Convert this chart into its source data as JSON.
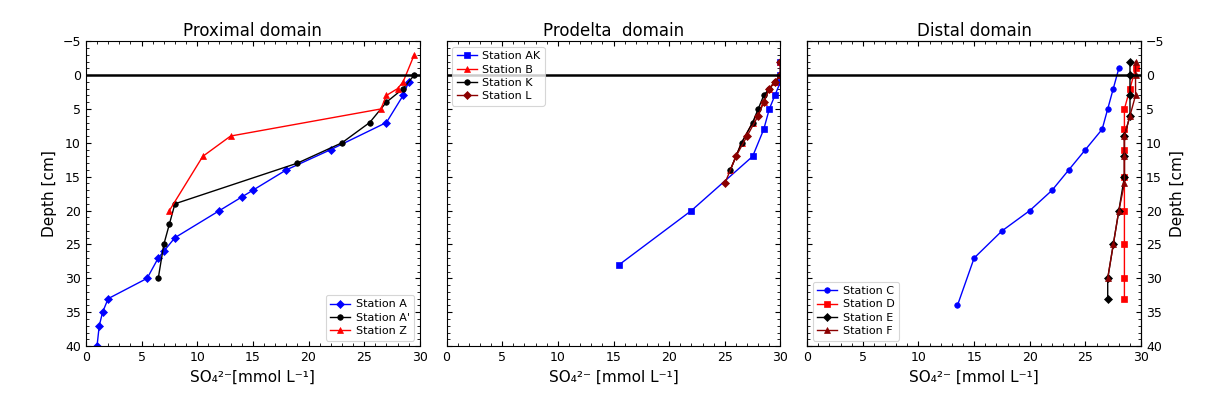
{
  "proximal": {
    "title": "Proximal domain",
    "xlabel": "SO₄²⁻[mmol L⁻¹]",
    "ylabel": "Depth [cm]",
    "ylim": [
      40,
      -5
    ],
    "xlim": [
      0,
      30
    ],
    "xticks": [
      0,
      5,
      10,
      15,
      20,
      25,
      30
    ],
    "yticks": [
      -5,
      0,
      5,
      10,
      15,
      20,
      25,
      30,
      35,
      40
    ],
    "hline_y": 0,
    "stations": [
      {
        "label": "Station A",
        "color": "blue",
        "marker": "D",
        "markersize": 4,
        "so4": [
          1.0,
          1.2,
          1.5,
          2.0,
          5.5,
          6.5,
          7.0,
          8.0,
          12.0,
          14.0,
          15.0,
          18.0,
          22.0,
          27.0,
          28.5,
          29.0
        ],
        "depth": [
          40,
          37,
          35,
          33,
          30,
          27,
          26,
          24,
          20,
          18,
          17,
          14,
          11,
          7,
          3,
          1
        ]
      },
      {
        "label": "Station A'",
        "color": "black",
        "marker": "o",
        "markersize": 4,
        "so4": [
          6.5,
          7.0,
          7.5,
          8.0,
          19.0,
          23.0,
          25.5,
          27.0,
          28.5,
          29.5
        ],
        "depth": [
          30,
          25,
          22,
          19,
          13,
          10,
          7,
          4,
          2,
          0
        ]
      },
      {
        "label": "Station Z",
        "color": "red",
        "marker": "^",
        "markersize": 4,
        "so4": [
          7.5,
          10.5,
          13.0,
          26.5,
          27.0,
          28.0,
          28.5,
          29.5
        ],
        "depth": [
          20,
          12,
          9,
          5,
          3,
          2,
          1,
          -3
        ]
      }
    ],
    "legend_loc": "lower right"
  },
  "prodelta": {
    "title": "Prodelta  domain",
    "xlabel": "SO₄²⁻ [mmol L⁻¹]",
    "ylabel": "",
    "ylim": [
      40,
      -5
    ],
    "xlim": [
      0,
      30
    ],
    "xticks": [
      0,
      5,
      10,
      15,
      20,
      25,
      30
    ],
    "yticks": [
      -5,
      0,
      5,
      10,
      15,
      20,
      25,
      30,
      35,
      40
    ],
    "hline_y": 0,
    "stations": [
      {
        "label": "Station AK",
        "color": "blue",
        "marker": "s",
        "markersize": 4,
        "so4": [
          15.5,
          22.0,
          27.5,
          28.5,
          29.0,
          29.5,
          30.0,
          30.0,
          30.0
        ],
        "depth": [
          28,
          20,
          12,
          8,
          5,
          3,
          1,
          0,
          -2
        ]
      },
      {
        "label": "Station B",
        "color": "red",
        "marker": "^",
        "markersize": 4,
        "so4": [
          25.5,
          26.5,
          27.5,
          28.5,
          29.0,
          29.5,
          30.0,
          30.0
        ],
        "depth": [
          14,
          10,
          7,
          4,
          2,
          1,
          0,
          -2
        ]
      },
      {
        "label": "Station K",
        "color": "black",
        "marker": "o",
        "markersize": 4,
        "so4": [
          25.5,
          26.5,
          27.5,
          28.0,
          28.5,
          29.0,
          29.5,
          30.0,
          30.0
        ],
        "depth": [
          14,
          10,
          7,
          5,
          3,
          2,
          1,
          0,
          -2
        ]
      },
      {
        "label": "Station L",
        "color": "#8B0000",
        "marker": "D",
        "markersize": 4,
        "so4": [
          25.0,
          26.0,
          27.0,
          28.0,
          28.5,
          29.0,
          29.5,
          30.0,
          30.0
        ],
        "depth": [
          16,
          12,
          9,
          6,
          4,
          2,
          1,
          0,
          -2
        ]
      }
    ],
    "legend_loc": "upper left"
  },
  "distal": {
    "title": "Distal domain",
    "xlabel": "SO₄²⁻ [mmol L⁻¹]",
    "ylabel": "Depth [cm]",
    "ylim": [
      40,
      -5
    ],
    "xlim": [
      0,
      30
    ],
    "xticks": [
      0,
      5,
      10,
      15,
      20,
      25,
      30
    ],
    "yticks": [
      -5,
      0,
      5,
      10,
      15,
      20,
      25,
      30,
      35,
      40
    ],
    "hline_y": 0,
    "stations": [
      {
        "label": "Station C",
        "color": "blue",
        "marker": "o",
        "markersize": 4,
        "so4": [
          28.0,
          27.5,
          27.0,
          26.5,
          25.0,
          23.5,
          22.0,
          20.0,
          17.5,
          15.0,
          13.5
        ],
        "depth": [
          -1,
          2,
          5,
          8,
          11,
          14,
          17,
          20,
          23,
          27,
          34
        ]
      },
      {
        "label": "Station D",
        "color": "red",
        "marker": "s",
        "markersize": 4,
        "so4": [
          29.5,
          29.0,
          28.5,
          28.5,
          28.5,
          28.5,
          28.5,
          28.5,
          28.5,
          28.5
        ],
        "depth": [
          -1,
          2,
          5,
          8,
          11,
          15,
          20,
          25,
          30,
          33
        ]
      },
      {
        "label": "Station E",
        "color": "black",
        "marker": "D",
        "markersize": 4,
        "so4": [
          29.0,
          29.0,
          29.0,
          29.0,
          28.5,
          28.5,
          28.5,
          28.0,
          27.5,
          27.0,
          27.0
        ],
        "depth": [
          -2,
          0,
          3,
          6,
          9,
          12,
          15,
          20,
          25,
          30,
          33
        ]
      },
      {
        "label": "Station F",
        "color": "#8B0000",
        "marker": "^",
        "markersize": 4,
        "so4": [
          29.5,
          29.5,
          29.5,
          29.0,
          28.5,
          28.5,
          28.5,
          28.0,
          27.5,
          27.0
        ],
        "depth": [
          -2,
          0,
          3,
          6,
          9,
          12,
          16,
          20,
          25,
          30
        ]
      }
    ],
    "legend_loc": "lower left"
  }
}
